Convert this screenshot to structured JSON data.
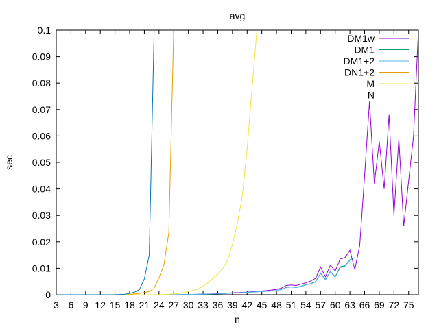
{
  "chart_data": {
    "type": "line",
    "title": "avg",
    "xlabel": "n",
    "ylabel": "sec",
    "xlim": [
      3,
      77
    ],
    "ylim": [
      0,
      0.1
    ],
    "xticks": [
      3,
      6,
      9,
      12,
      15,
      18,
      21,
      24,
      27,
      30,
      33,
      36,
      39,
      42,
      45,
      48,
      51,
      54,
      57,
      60,
      63,
      66,
      69,
      72,
      75
    ],
    "yticks": [
      0,
      0.01,
      0.02,
      0.03,
      0.04,
      0.05,
      0.06,
      0.07,
      0.08,
      0.09,
      0.1
    ],
    "ytick_labels": [
      "0",
      "0.01",
      "0.02",
      "0.03",
      "0.04",
      "0.05",
      "0.06",
      "0.07",
      "0.08",
      "0.09",
      "0.1"
    ],
    "grid": false,
    "legend_position": "top-right",
    "series": [
      {
        "name": "DM1w",
        "color": "#9400d3",
        "x": [
          3,
          6,
          9,
          12,
          15,
          18,
          21,
          24,
          27,
          30,
          33,
          36,
          39,
          42,
          44,
          46,
          48,
          49,
          50,
          51,
          52,
          53,
          54,
          55,
          56,
          57,
          58,
          59,
          60,
          61,
          62,
          63,
          64,
          65,
          66,
          67,
          68,
          69,
          70,
          71,
          72,
          73,
          74,
          75,
          76,
          77
        ],
        "y": [
          0,
          0,
          0,
          0,
          0,
          0,
          0,
          0,
          0,
          0.0001,
          0.0002,
          0.0004,
          0.0007,
          0.001,
          0.0013,
          0.0016,
          0.002,
          0.0025,
          0.0035,
          0.0037,
          0.0035,
          0.004,
          0.0045,
          0.0052,
          0.0062,
          0.0105,
          0.0068,
          0.0112,
          0.009,
          0.0135,
          0.014,
          0.0168,
          0.0095,
          0.0185,
          0.045,
          0.073,
          0.042,
          0.058,
          0.04,
          0.068,
          0.03,
          0.059,
          0.026,
          0.043,
          0.06,
          0.1
        ]
      },
      {
        "name": "DM1",
        "color": "#009e73",
        "x": [
          3,
          6,
          9,
          12,
          15,
          18,
          21,
          24,
          27,
          30,
          33,
          36,
          39,
          42,
          44,
          46,
          48,
          49,
          50,
          51,
          52,
          53,
          54,
          55,
          56,
          57,
          58,
          59,
          60,
          61,
          62,
          63,
          64
        ],
        "y": [
          0,
          0,
          0,
          0,
          0,
          0,
          0,
          0,
          0,
          0.0001,
          0.0002,
          0.0003,
          0.0006,
          0.0009,
          0.0011,
          0.0013,
          0.0016,
          0.002,
          0.0028,
          0.003,
          0.0028,
          0.0032,
          0.0038,
          0.0042,
          0.005,
          0.0082,
          0.0058,
          0.0088,
          0.0068,
          0.0105,
          0.011,
          0.0132,
          0.014
        ]
      },
      {
        "name": "DM1+2",
        "color": "#56b4e9",
        "x": [
          3,
          6,
          9,
          12,
          15,
          18,
          21,
          24,
          27,
          30,
          33,
          36,
          39,
          42,
          44,
          46,
          48,
          49,
          50,
          51,
          52,
          53,
          54,
          55,
          56,
          57,
          58,
          59,
          60,
          61,
          62,
          63
        ],
        "y": [
          0,
          0,
          0,
          0,
          0,
          0,
          0,
          0,
          0,
          0.0001,
          0.0002,
          0.0003,
          0.0006,
          0.0009,
          0.0011,
          0.0013,
          0.0016,
          0.002,
          0.0027,
          0.0029,
          0.0027,
          0.0031,
          0.0037,
          0.0041,
          0.0048,
          0.008,
          0.0056,
          0.0086,
          0.0066,
          0.0102,
          0.0108,
          0.013
        ]
      },
      {
        "name": "DN1+2",
        "color": "#e69f00",
        "x": [
          3,
          6,
          9,
          12,
          15,
          17,
          18,
          19,
          20,
          21,
          22,
          23,
          24,
          25,
          26,
          27
        ],
        "y": [
          0,
          0,
          0,
          0,
          0,
          0.0001,
          0.0002,
          0.0003,
          0.0005,
          0.0008,
          0.0012,
          0.0025,
          0.0065,
          0.0113,
          0.0235,
          0.1
        ]
      },
      {
        "name": "M",
        "color": "#f0e442",
        "x": [
          3,
          6,
          9,
          12,
          15,
          18,
          21,
          24,
          27,
          28,
          29,
          30,
          31,
          32,
          33,
          34,
          35,
          36,
          37,
          38,
          39,
          40,
          41,
          42,
          43,
          44
        ],
        "y": [
          0,
          0,
          0,
          0,
          0,
          0,
          0,
          0,
          0.0003,
          0.0005,
          0.0008,
          0.0012,
          0.0016,
          0.0022,
          0.0032,
          0.0045,
          0.0062,
          0.0078,
          0.0098,
          0.013,
          0.019,
          0.027,
          0.037,
          0.055,
          0.078,
          0.1
        ]
      },
      {
        "name": "N",
        "color": "#0072b2",
        "x": [
          3,
          6,
          9,
          12,
          15,
          16,
          17,
          18,
          19,
          20,
          21,
          22,
          23
        ],
        "y": [
          0,
          0,
          0,
          0,
          0,
          0.0001,
          0.0002,
          0.0005,
          0.001,
          0.002,
          0.006,
          0.015,
          0.1
        ]
      }
    ]
  }
}
